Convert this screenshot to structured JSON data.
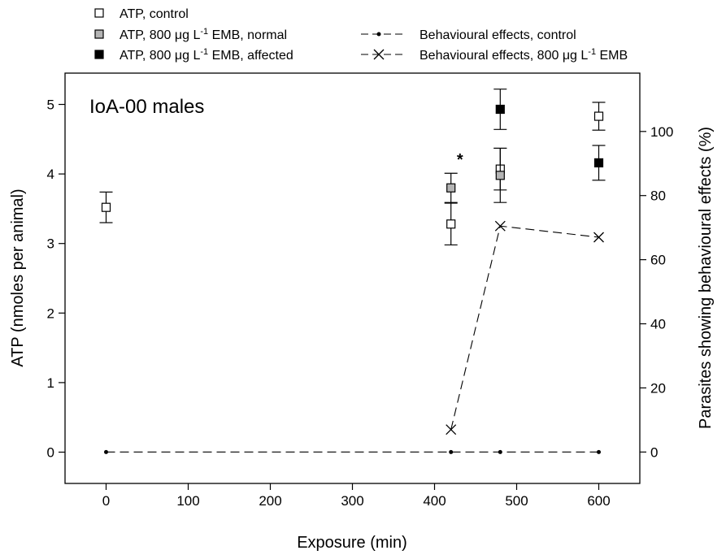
{
  "chart_data": {
    "type": "scatter",
    "title": "IoA-00 males",
    "xlabel": "Exposure (min)",
    "ylabel_left": "ATP (nmoles per animal)",
    "ylabel_right": "Parasites showing behavioural effects (%)",
    "xlim": [
      -50,
      650
    ],
    "ylim_left": [
      -0.45,
      5.45
    ],
    "ylim_right": [
      -9.8,
      118.2
    ],
    "x_ticks": [
      0,
      100,
      200,
      300,
      400,
      500,
      600
    ],
    "y_left_ticks": [
      0,
      1,
      2,
      3,
      4,
      5
    ],
    "y_right_ticks": [
      0,
      20,
      40,
      60,
      80,
      100
    ],
    "grid": false,
    "legend_position": "top",
    "series": [
      {
        "name": "ATP, control",
        "axis": "left",
        "marker": "square-open",
        "color": "#ffffff",
        "points": [
          {
            "x": 0,
            "y": 3.52,
            "err": 0.22
          },
          {
            "x": 420,
            "y": 3.28,
            "err": 0.3
          },
          {
            "x": 480,
            "y": 4.07,
            "err": 0.3
          },
          {
            "x": 600,
            "y": 4.83,
            "err": 0.2
          }
        ]
      },
      {
        "name": "ATP, 800 μg L⁻¹ EMB, normal",
        "axis": "left",
        "marker": "square-gray",
        "color": "#b4b4b4",
        "points": [
          {
            "x": 420,
            "y": 3.8,
            "err": 0.21
          },
          {
            "x": 480,
            "y": 3.98,
            "err": 0.39
          }
        ]
      },
      {
        "name": "ATP, 800 μg L⁻¹ EMB, affected",
        "axis": "left",
        "marker": "square-filled",
        "color": "#000000",
        "points": [
          {
            "x": 480,
            "y": 4.93,
            "err": 0.29
          },
          {
            "x": 600,
            "y": 4.16,
            "err": 0.25
          }
        ]
      },
      {
        "name": "Behavioural effects, control",
        "axis": "right",
        "marker": "dot",
        "line": "dashed",
        "points": [
          {
            "x": 0,
            "y": 0
          },
          {
            "x": 420,
            "y": 0
          },
          {
            "x": 480,
            "y": 0
          },
          {
            "x": 600,
            "y": 0
          }
        ]
      },
      {
        "name": "Behavioural effects, 800 μg L⁻¹ EMB",
        "axis": "right",
        "marker": "x",
        "line": "dashed",
        "points": [
          {
            "x": 420,
            "y": 7
          },
          {
            "x": 480,
            "y": 70.5
          },
          {
            "x": 600,
            "y": 67
          }
        ]
      }
    ],
    "annotations": [
      {
        "text": "*",
        "x": 430,
        "y": 4.13,
        "axis": "left"
      }
    ]
  }
}
